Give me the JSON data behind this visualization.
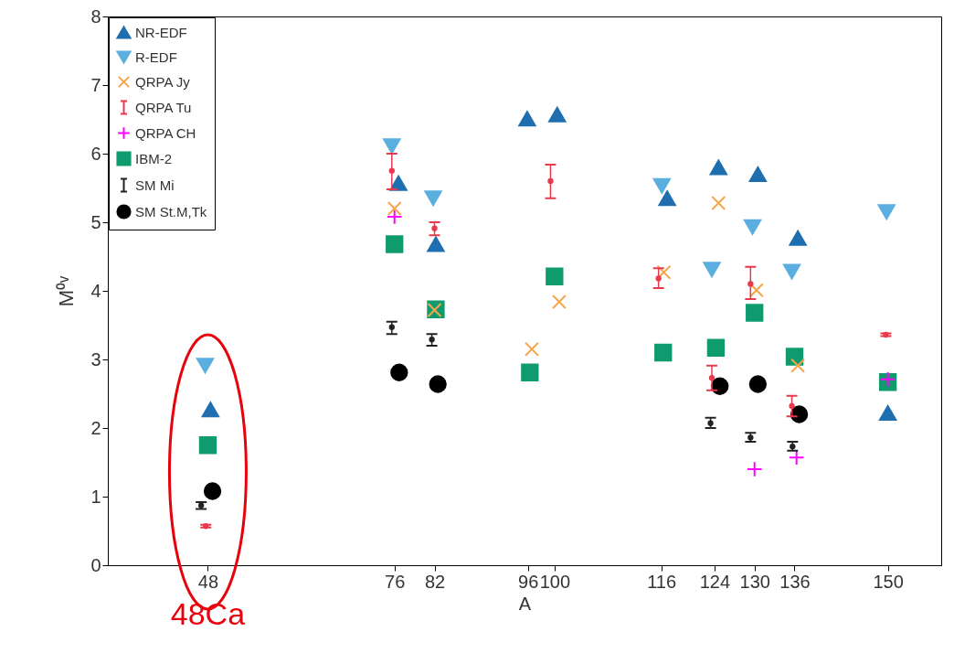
{
  "chart_data": {
    "type": "scatter",
    "xlabel": "A",
    "ylabel": "M⁰ᵛ",
    "xlim": [
      33,
      158
    ],
    "xticks": [
      48,
      76,
      82,
      96,
      100,
      116,
      124,
      130,
      136,
      150
    ],
    "ylim": [
      0,
      8
    ],
    "yticks": [
      0,
      1,
      2,
      3,
      4,
      5,
      6,
      7,
      8
    ],
    "grid": false,
    "legend": "top left",
    "annotations": [
      "48Ca"
    ],
    "series": [
      {
        "name": "NR-EDF",
        "color": "#1f6fb0",
        "marker": "triangle",
        "x": [
          48.4,
          76.6,
          82.2,
          95.9,
          100.4,
          116.9,
          124.6,
          130.5,
          136.5,
          150
        ],
        "values": [
          2.27,
          5.57,
          4.68,
          6.51,
          6.57,
          5.35,
          5.8,
          5.7,
          4.77,
          2.22
        ]
      },
      {
        "name": "R-EDF",
        "color": "#5aaee0",
        "marker": "triangle-down",
        "x": [
          47.6,
          75.6,
          81.8,
          116.1,
          123.6,
          129.7,
          135.6,
          149.8
        ],
        "values": [
          2.91,
          6.11,
          5.35,
          5.53,
          4.31,
          4.93,
          4.28,
          5.15
        ]
      },
      {
        "name": "QRPA Jy",
        "color": "#f5a64b",
        "marker": "x",
        "x": [
          76,
          82,
          96.6,
          100.7,
          116.4,
          124.6,
          130.3,
          136.5
        ],
        "values": [
          5.2,
          3.72,
          3.15,
          3.84,
          4.27,
          5.28,
          4.01,
          2.91
        ]
      },
      {
        "name": "QRPA Tu",
        "color": "#e8394d",
        "marker": "none",
        "x": [
          47.7,
          75.6,
          82,
          99.4,
          115.6,
          123.6,
          129.4,
          135.6,
          149.7
        ],
        "values": [
          0.57,
          5.75,
          4.91,
          5.6,
          4.18,
          2.73,
          4.1,
          2.32,
          3.36
        ],
        "errors": [
          [
            0.55,
            0.59
          ],
          [
            5.48,
            6.0
          ],
          [
            4.81,
            5.0
          ],
          [
            5.35,
            5.84
          ],
          [
            4.04,
            4.33
          ],
          [
            2.55,
            2.91
          ],
          [
            3.88,
            4.35
          ],
          [
            2.17,
            2.47
          ],
          [
            3.34,
            3.38
          ]
        ]
      },
      {
        "name": "QRPA CH",
        "color": "#ff00ff",
        "marker": "cross",
        "x": [
          76,
          130,
          136.3,
          150
        ],
        "values": [
          5.08,
          1.4,
          1.57,
          2.71
        ]
      },
      {
        "name": "IBM-2",
        "color": "#0f9b6e",
        "marker": "square",
        "x": [
          48,
          76,
          82.2,
          96.3,
          100,
          116.3,
          124.2,
          130,
          136,
          150
        ],
        "values": [
          1.75,
          4.68,
          3.73,
          2.81,
          4.21,
          3.1,
          3.17,
          3.68,
          3.04,
          2.67
        ]
      },
      {
        "name": "SM Mi",
        "color": "#222222",
        "marker": "none",
        "x": [
          47,
          75.6,
          81.6,
          123.4,
          129.4,
          135.7
        ],
        "values": [
          0.87,
          3.47,
          3.29,
          2.07,
          1.86,
          1.73
        ],
        "errors": [
          [
            0.82,
            0.92
          ],
          [
            3.37,
            3.55
          ],
          [
            3.2,
            3.37
          ],
          [
            2.0,
            2.15
          ],
          [
            1.8,
            1.93
          ],
          [
            1.67,
            1.8
          ]
        ]
      },
      {
        "name": "SM St.M,Tk",
        "color": "#000000",
        "marker": "circle",
        "x": [
          48.7,
          76.7,
          82.5,
          124.8,
          130.5,
          136.7
        ],
        "values": [
          1.08,
          2.81,
          2.64,
          2.61,
          2.64,
          2.2
        ]
      }
    ]
  }
}
